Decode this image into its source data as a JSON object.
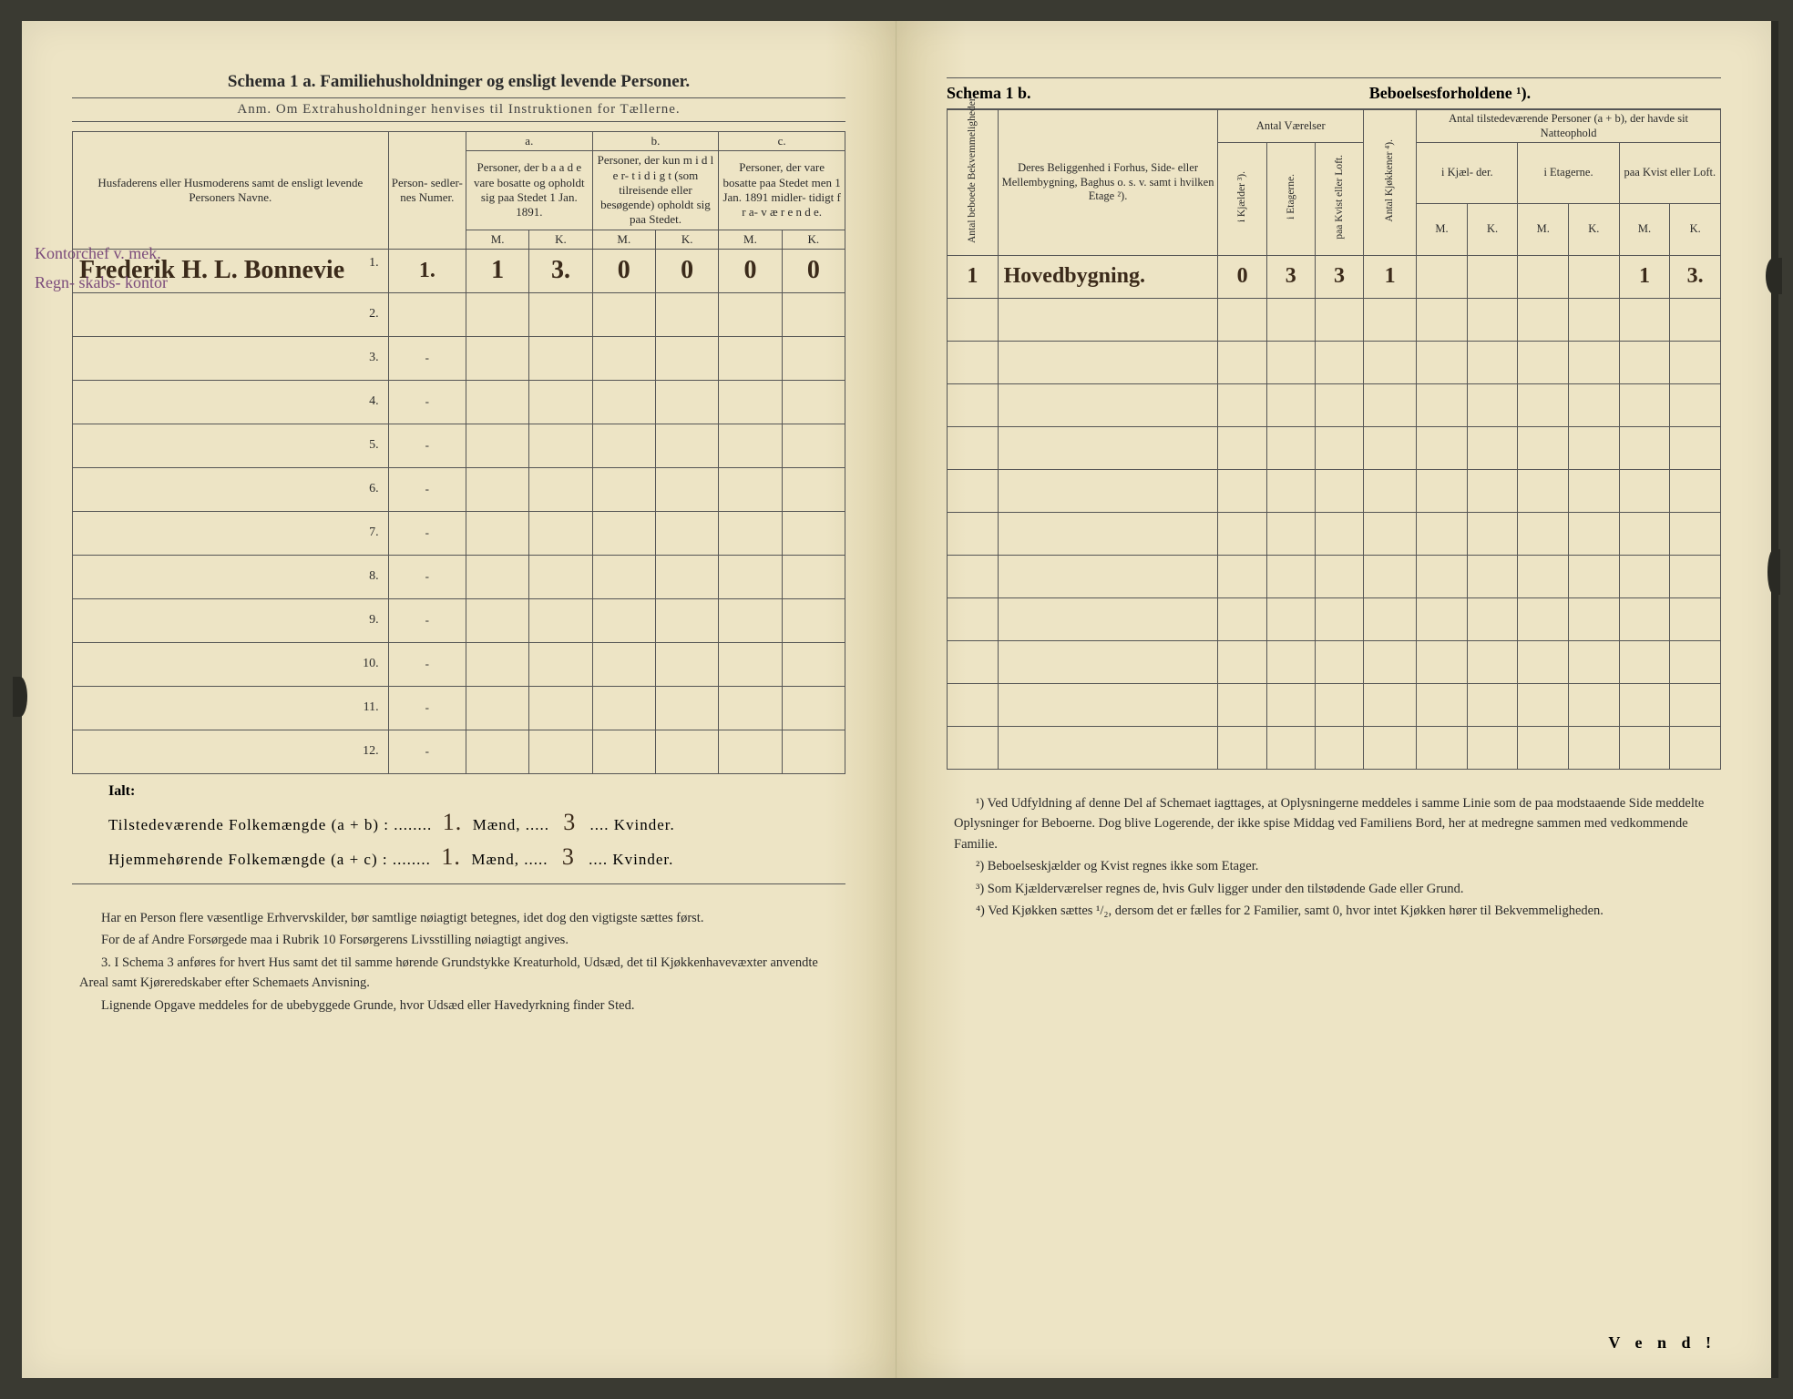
{
  "colors": {
    "paper": "#ede4c5",
    "ink": "#2a2a2a",
    "handwriting": "#3b2a1a",
    "margin_note": "#7b4b7b",
    "rule": "#555555",
    "background": "#3a3a32"
  },
  "left": {
    "title": "Schema 1 a.  Familiehusholdninger og ensligt levende Personer.",
    "subtitle": "Anm. Om Extrahusholdninger henvises til Instruktionen for Tællerne.",
    "headers": {
      "name": "Husfaderens eller Husmoderens samt de ensligt levende Personers Navne.",
      "num": "Person-\nsedler-\nnes\nNumer.",
      "a_top": "a.",
      "a": "Personer, der b a a d e vare bosatte og opholdt sig paa Stedet 1 Jan. 1891.",
      "b_top": "b.",
      "b": "Personer, der kun m i d l e r-\nt i d i g t (som tilreisende eller besøgende) opholdt sig paa Stedet.",
      "c_top": "c.",
      "c": "Personer, der vare bosatte paa Stedet men 1 Jan. 1891 midler-\ntidigt f r a-\nv æ r e n d e.",
      "M": "M.",
      "K": "K."
    },
    "margin_notes": [
      "Kontorchef v. mek.",
      "Regn-\nskabs-\nkontor"
    ],
    "rows": [
      {
        "n": "1.",
        "name": "Frederik H. L. Bonnevie",
        "num": "1.",
        "aM": "1",
        "aK": "3.",
        "bM": "0",
        "bK": "0",
        "cM": "0",
        "cK": "0"
      },
      {
        "n": "2.",
        "name": "",
        "num": "",
        "aM": "",
        "aK": "",
        "bM": "",
        "bK": "",
        "cM": "",
        "cK": ""
      },
      {
        "n": "3.",
        "name": "",
        "num": "-",
        "aM": "",
        "aK": "",
        "bM": "",
        "bK": "",
        "cM": "",
        "cK": ""
      },
      {
        "n": "4.",
        "name": "",
        "num": "-",
        "aM": "",
        "aK": "",
        "bM": "",
        "bK": "",
        "cM": "",
        "cK": ""
      },
      {
        "n": "5.",
        "name": "",
        "num": "-",
        "aM": "",
        "aK": "",
        "bM": "",
        "bK": "",
        "cM": "",
        "cK": ""
      },
      {
        "n": "6.",
        "name": "",
        "num": "-",
        "aM": "",
        "aK": "",
        "bM": "",
        "bK": "",
        "cM": "",
        "cK": ""
      },
      {
        "n": "7.",
        "name": "",
        "num": "-",
        "aM": "",
        "aK": "",
        "bM": "",
        "bK": "",
        "cM": "",
        "cK": ""
      },
      {
        "n": "8.",
        "name": "",
        "num": "-",
        "aM": "",
        "aK": "",
        "bM": "",
        "bK": "",
        "cM": "",
        "cK": ""
      },
      {
        "n": "9.",
        "name": "",
        "num": "-",
        "aM": "",
        "aK": "",
        "bM": "",
        "bK": "",
        "cM": "",
        "cK": ""
      },
      {
        "n": "10.",
        "name": "",
        "num": "-",
        "aM": "",
        "aK": "",
        "bM": "",
        "bK": "",
        "cM": "",
        "cK": ""
      },
      {
        "n": "11.",
        "name": "",
        "num": "-",
        "aM": "",
        "aK": "",
        "bM": "",
        "bK": "",
        "cM": "",
        "cK": ""
      },
      {
        "n": "12.",
        "name": "",
        "num": "-",
        "aM": "",
        "aK": "",
        "bM": "",
        "bK": "",
        "cM": "",
        "cK": ""
      }
    ],
    "ialt": "Ialt:",
    "sum1_label_a": "Tilstedeværende Folkemængde (a + b) : ........",
    "sum1_maend": "1.",
    "sum1_mid": " Mænd, .....",
    "sum1_kvinder": "3",
    "sum1_end": ".... Kvinder.",
    "sum2_label_a": "Hjemmehørende Folkemængde (a + c) : ........",
    "sum2_maend": "1.",
    "sum2_mid": " Mænd, .....",
    "sum2_kvinder": "3",
    "sum2_end": ".... Kvinder.",
    "footnotes": [
      "Har en Person flere væsentlige Erhvervskilder, bør samtlige nøiagtigt betegnes, idet dog den vigtigste sættes først.",
      "For de af Andre Forsørgede maa i Rubrik 10 Forsørgerens Livsstilling nøiagtigt angives.",
      "3. I Schema 3 anføres for hvert Hus samt det til samme hørende Grundstykke Kreaturhold, Udsæd, det til Kjøkkenhavevæxter anvendte Areal samt Kjøreredskaber efter Schemaets Anvisning.",
      "Lignende Opgave meddeles for de ubebyggede Grunde, hvor Udsæd eller Havedyrkning finder Sted."
    ]
  },
  "right": {
    "title_a": "Schema 1 b.",
    "title_b": "Beboelsesforholdene ¹).",
    "headers": {
      "bekv": "Antal beboede Bekvemmeligheder.",
      "belig": "Deres Beliggenhed i Forhus, Side- eller Mellembygning, Baghus o. s. v. samt i hvilken Etage ²).",
      "vaer": "Antal\nVærelser",
      "kjael": "i Kjælder ³).",
      "etag": "i Etagerne.",
      "kvist": "paa Kvist eller Loft.",
      "kok": "Antal Kjøkkener ⁴).",
      "persons_top": "Antal tilstedeværende Personer (a + b), der havde sit Natteophold",
      "p_kj": "i Kjæl-\nder.",
      "p_et": "i\nEtagerne.",
      "p_kv": "paa\nKvist\neller\nLoft.",
      "M": "M.",
      "K": "K."
    },
    "rows": [
      {
        "bekv": "1",
        "belig": "Hovedbygning.",
        "kj": "0",
        "et": "3",
        "kv": "3",
        "kok": "1",
        "pkjM": "",
        "pkjK": "",
        "petM": "",
        "petK": "",
        "pkvM": "1",
        "pkvK": "3."
      },
      {
        "bekv": "",
        "belig": "",
        "kj": "",
        "et": "",
        "kv": "",
        "kok": "",
        "pkjM": "",
        "pkjK": "",
        "petM": "",
        "petK": "",
        "pkvM": "",
        "pkvK": ""
      },
      {
        "bekv": "",
        "belig": "",
        "kj": "",
        "et": "",
        "kv": "",
        "kok": "",
        "pkjM": "",
        "pkjK": "",
        "petM": "",
        "petK": "",
        "pkvM": "",
        "pkvK": ""
      },
      {
        "bekv": "",
        "belig": "",
        "kj": "",
        "et": "",
        "kv": "",
        "kok": "",
        "pkjM": "",
        "pkjK": "",
        "petM": "",
        "petK": "",
        "pkvM": "",
        "pkvK": ""
      },
      {
        "bekv": "",
        "belig": "",
        "kj": "",
        "et": "",
        "kv": "",
        "kok": "",
        "pkjM": "",
        "pkjK": "",
        "petM": "",
        "petK": "",
        "pkvM": "",
        "pkvK": ""
      },
      {
        "bekv": "",
        "belig": "",
        "kj": "",
        "et": "",
        "kv": "",
        "kok": "",
        "pkjM": "",
        "pkjK": "",
        "petM": "",
        "petK": "",
        "pkvM": "",
        "pkvK": ""
      },
      {
        "bekv": "",
        "belig": "",
        "kj": "",
        "et": "",
        "kv": "",
        "kok": "",
        "pkjM": "",
        "pkjK": "",
        "petM": "",
        "petK": "",
        "pkvM": "",
        "pkvK": ""
      },
      {
        "bekv": "",
        "belig": "",
        "kj": "",
        "et": "",
        "kv": "",
        "kok": "",
        "pkjM": "",
        "pkjK": "",
        "petM": "",
        "petK": "",
        "pkvM": "",
        "pkvK": ""
      },
      {
        "bekv": "",
        "belig": "",
        "kj": "",
        "et": "",
        "kv": "",
        "kok": "",
        "pkjM": "",
        "pkjK": "",
        "petM": "",
        "petK": "",
        "pkvM": "",
        "pkvK": ""
      },
      {
        "bekv": "",
        "belig": "",
        "kj": "",
        "et": "",
        "kv": "",
        "kok": "",
        "pkjM": "",
        "pkjK": "",
        "petM": "",
        "petK": "",
        "pkvM": "",
        "pkvK": ""
      },
      {
        "bekv": "",
        "belig": "",
        "kj": "",
        "et": "",
        "kv": "",
        "kok": "",
        "pkjM": "",
        "pkjK": "",
        "petM": "",
        "petK": "",
        "pkvM": "",
        "pkvK": ""
      },
      {
        "bekv": "",
        "belig": "",
        "kj": "",
        "et": "",
        "kv": "",
        "kok": "",
        "pkjM": "",
        "pkjK": "",
        "petM": "",
        "petK": "",
        "pkvM": "",
        "pkvK": ""
      }
    ],
    "footnotes": [
      "¹) Ved Udfyldning af denne Del af Schemaet iagttages, at Oplysningerne meddeles i samme Linie som de paa modstaaende Side meddelte Oplysninger for Beboerne. Dog blive Logerende, der ikke spise Middag ved Familiens Bord, her at medregne sammen med vedkommende Familie.",
      "²) Beboelseskjælder og Kvist regnes ikke som Etager.",
      "³) Som Kjælderværelser regnes de, hvis Gulv ligger under den tilstødende Gade eller Grund.",
      "⁴) Ved Kjøkken sættes ¹/₂, dersom det er fælles for 2 Familier, samt 0, hvor intet Kjøkken hører til Bekvemmeligheden."
    ],
    "vend": "V e n d !"
  }
}
